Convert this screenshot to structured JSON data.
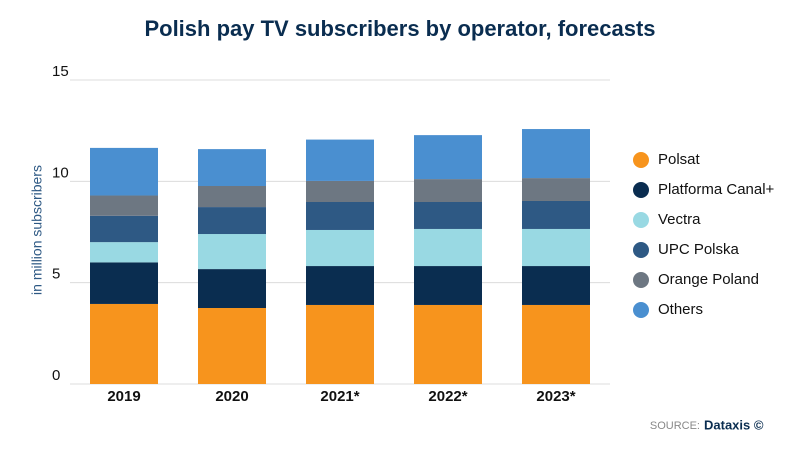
{
  "chart_data": {
    "type": "stacked_bar",
    "title": "Polish pay TV subscribers by operator, forecasts",
    "y_label": "in million subscribers",
    "categories": [
      "2019",
      "2020",
      "2021*",
      "2022*",
      "2023*"
    ],
    "series": [
      {
        "name": "Polsat",
        "color": "#f7941d",
        "values": [
          3.95,
          3.75,
          3.9,
          3.9,
          3.9
        ]
      },
      {
        "name": "Platforma Canal+",
        "color": "#0a2d50",
        "values": [
          2.05,
          1.92,
          1.92,
          1.92,
          1.92
        ]
      },
      {
        "name": "Vectra",
        "color": "#99d9e3",
        "values": [
          1.0,
          1.73,
          1.78,
          1.83,
          1.83
        ]
      },
      {
        "name": "UPC Polska",
        "color": "#2e5984",
        "values": [
          1.3,
          1.33,
          1.38,
          1.33,
          1.38
        ]
      },
      {
        "name": "Orange Poland",
        "color": "#6d7782",
        "values": [
          1.0,
          1.04,
          1.04,
          1.13,
          1.13
        ]
      },
      {
        "name": "Others",
        "color": "#4a8fd0",
        "values": [
          2.35,
          1.82,
          2.04,
          2.17,
          2.42
        ]
      }
    ],
    "ylim": [
      0,
      15
    ],
    "yticks": [
      0,
      5,
      10,
      15
    ],
    "grid": true,
    "legend": "right",
    "source_label": "SOURCE:",
    "source": "Dataxis ©"
  }
}
